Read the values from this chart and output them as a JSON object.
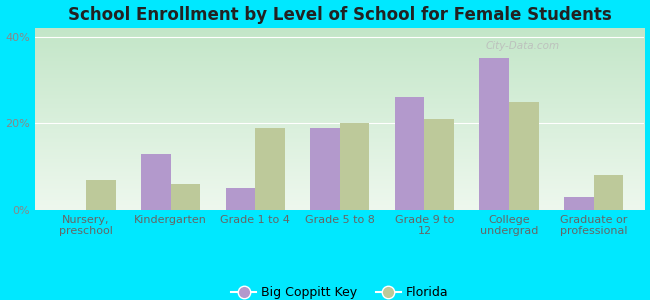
{
  "title": "School Enrollment by Level of School for Female Students",
  "categories": [
    "Nursery,\npreschool",
    "Kindergarten",
    "Grade 1 to 4",
    "Grade 5 to 8",
    "Grade 9 to\n12",
    "College\nundergrad",
    "Graduate or\nprofessional"
  ],
  "big_coppitt_key": [
    0.0,
    13.0,
    5.0,
    19.0,
    26.0,
    35.0,
    3.0
  ],
  "florida": [
    7.0,
    6.0,
    19.0,
    20.0,
    21.0,
    25.0,
    8.0
  ],
  "bar_color_bckey": "#b399cc",
  "bar_color_fl": "#bdc99a",
  "background_outer": "#00e8ff",
  "background_plot_top": "#eef5ee",
  "background_plot_bottom": "#c8e8cc",
  "ylim": [
    0,
    42
  ],
  "yticks": [
    0,
    20,
    40
  ],
  "ytick_labels": [
    "0%",
    "20%",
    "40%"
  ],
  "legend_labels": [
    "Big Coppitt Key",
    "Florida"
  ],
  "bar_width": 0.35,
  "title_fontsize": 12,
  "tick_fontsize": 8
}
